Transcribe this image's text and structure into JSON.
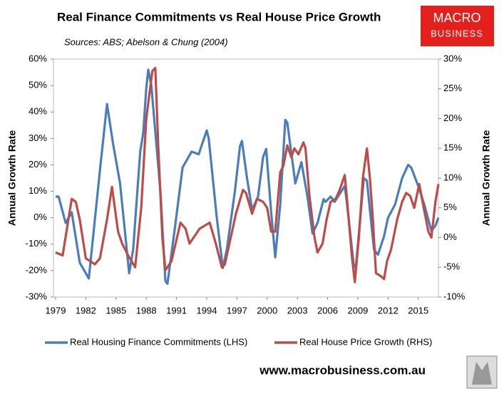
{
  "chart_data": {
    "type": "line",
    "title": "Real Finance Commitments vs Real House Price Growth",
    "subtitle": "Sources: ABS; Abelson & Chung (2004)",
    "y_label": "Annual Growth Rate",
    "y2_label": "Annual Growth Rate",
    "xlim": [
      1979,
      2017
    ],
    "xticks": [
      1979,
      1982,
      1985,
      1988,
      1991,
      1994,
      1997,
      2000,
      2003,
      2006,
      2009,
      2012,
      2015
    ],
    "ylim": [
      -30,
      60
    ],
    "yticks": [
      {
        "value": -30,
        "label": "-30%"
      },
      {
        "value": -20,
        "label": "-20%"
      },
      {
        "value": -10,
        "label": "-10%"
      },
      {
        "value": 0,
        "label": "0%"
      },
      {
        "value": 10,
        "label": "10%"
      },
      {
        "value": 20,
        "label": "20%"
      },
      {
        "value": 30,
        "label": "30%"
      },
      {
        "value": 40,
        "label": "40%"
      },
      {
        "value": 50,
        "label": "50%"
      },
      {
        "value": 60,
        "label": "60%"
      }
    ],
    "y2lim": [
      -10,
      30
    ],
    "y2ticks": [
      {
        "value": -10,
        "label": "-10%"
      },
      {
        "value": -5,
        "label": "-5%"
      },
      {
        "value": 0,
        "label": "0%"
      },
      {
        "value": 5,
        "label": "5%"
      },
      {
        "value": 10,
        "label": "10%"
      },
      {
        "value": 15,
        "label": "15%"
      },
      {
        "value": 20,
        "label": "20%"
      },
      {
        "value": 25,
        "label": "25%"
      },
      {
        "value": 30,
        "label": "30%"
      }
    ],
    "legend": "bottom",
    "series": [
      {
        "name": "Real Housing Finance Commitments (LHS)",
        "color": "#4a7ebb",
        "axis": "y",
        "x": [
          1979.0,
          1979.3,
          1980.0,
          1980.6,
          1981.4,
          1982.3,
          1983.4,
          1984.1,
          1984.7,
          1985.4,
          1986.3,
          1986.7,
          1987.4,
          1987.7,
          1988.0,
          1988.2,
          1988.5,
          1989.4,
          1989.9,
          1990.1,
          1990.8,
          1991.6,
          1992.5,
          1993.2,
          1994.0,
          1994.2,
          1995.0,
          1995.6,
          1996.0,
          1996.8,
          1997.3,
          1997.5,
          1998.0,
          1998.5,
          1999.1,
          1999.6,
          1999.9,
          2000.4,
          2000.8,
          2001.3,
          2001.8,
          2002.0,
          2002.8,
          2003.4,
          2004.0,
          2004.5,
          2005.0,
          2005.6,
          2005.8,
          2006.3,
          2006.7,
          2007.2,
          2007.7,
          2007.9,
          2008.6,
          2008.8,
          2009.6,
          2009.9,
          2010.6,
          2011.0,
          2011.6,
          2012.0,
          2012.7,
          2013.4,
          2014.0,
          2014.3,
          2015.0,
          2015.6,
          2016.3,
          2016.7,
          2017.0
        ],
        "values": [
          8,
          8,
          -2,
          2,
          -17,
          -23,
          18,
          43,
          28,
          13,
          -21,
          -12,
          25,
          32,
          49,
          56,
          50,
          10,
          -24,
          -25,
          -5,
          19,
          25,
          24,
          33,
          30,
          0,
          -19,
          -12,
          10,
          27,
          29,
          15,
          3,
          8,
          23,
          26,
          2,
          -15,
          5,
          37,
          36,
          13,
          21,
          8,
          -6,
          -2,
          7,
          6,
          8,
          6,
          9,
          12,
          6,
          -18,
          -19,
          15,
          14,
          -12,
          -14,
          -7,
          0,
          5,
          15,
          20,
          19,
          12,
          5,
          -5,
          -3,
          0
        ]
      },
      {
        "name": "Real House Price Growth (RHS)",
        "color": "#be4b48",
        "axis": "y2",
        "x": [
          1979.0,
          1979.7,
          1980.6,
          1981.0,
          1981.4,
          1982.0,
          1982.9,
          1983.4,
          1984.1,
          1984.6,
          1985.2,
          1985.6,
          1986.2,
          1986.9,
          1987.5,
          1988.0,
          1988.6,
          1988.9,
          1989.2,
          1989.6,
          1989.9,
          1990.5,
          1991.4,
          1991.9,
          1992.3,
          1993.3,
          1994.3,
          1994.9,
          1995.5,
          1995.8,
          1996.9,
          1997.6,
          1997.9,
          1998.5,
          1999.0,
          1999.6,
          2000.0,
          2000.4,
          2000.8,
          2001.3,
          2001.6,
          2002.0,
          2002.4,
          2002.7,
          2003.1,
          2003.6,
          2003.8,
          2004.2,
          2004.7,
          2005.0,
          2005.5,
          2005.9,
          2006.3,
          2006.8,
          2007.2,
          2007.7,
          2007.9,
          2008.4,
          2008.7,
          2009.1,
          2009.5,
          2009.9,
          2010.2,
          2010.5,
          2010.8,
          2011.3,
          2011.6,
          2011.9,
          2012.3,
          2012.9,
          2013.4,
          2013.8,
          2014.2,
          2014.6,
          2015.1,
          2015.6,
          2016.0,
          2016.3,
          2016.7,
          2017.0
        ],
        "values": [
          -2.5,
          -3,
          6.5,
          6,
          3,
          -3.5,
          -4.5,
          -3.5,
          3,
          8.5,
          1,
          -1,
          -3,
          -5,
          5,
          20,
          28,
          28.5,
          15,
          0,
          -5.5,
          -4,
          2.5,
          1.5,
          -1,
          1.5,
          2.5,
          -1,
          -5,
          -4.5,
          4,
          8,
          7.5,
          4,
          6.5,
          6,
          5,
          1,
          1,
          11,
          12,
          15.5,
          13.5,
          15,
          14,
          16,
          15,
          7,
          0,
          -2.5,
          -1,
          3,
          6,
          6.5,
          8,
          10.5,
          7,
          -3,
          -7.5,
          0,
          10,
          15,
          10,
          3,
          -6,
          -6.5,
          -7,
          -4,
          -2,
          3,
          6,
          7.5,
          7,
          5,
          9,
          4.5,
          1,
          0,
          6,
          9
        ]
      }
    ]
  },
  "branding": {
    "logo_top": "MACRO",
    "logo_bottom": "BUSINESS",
    "url": "www.macrobusiness.com.au"
  }
}
